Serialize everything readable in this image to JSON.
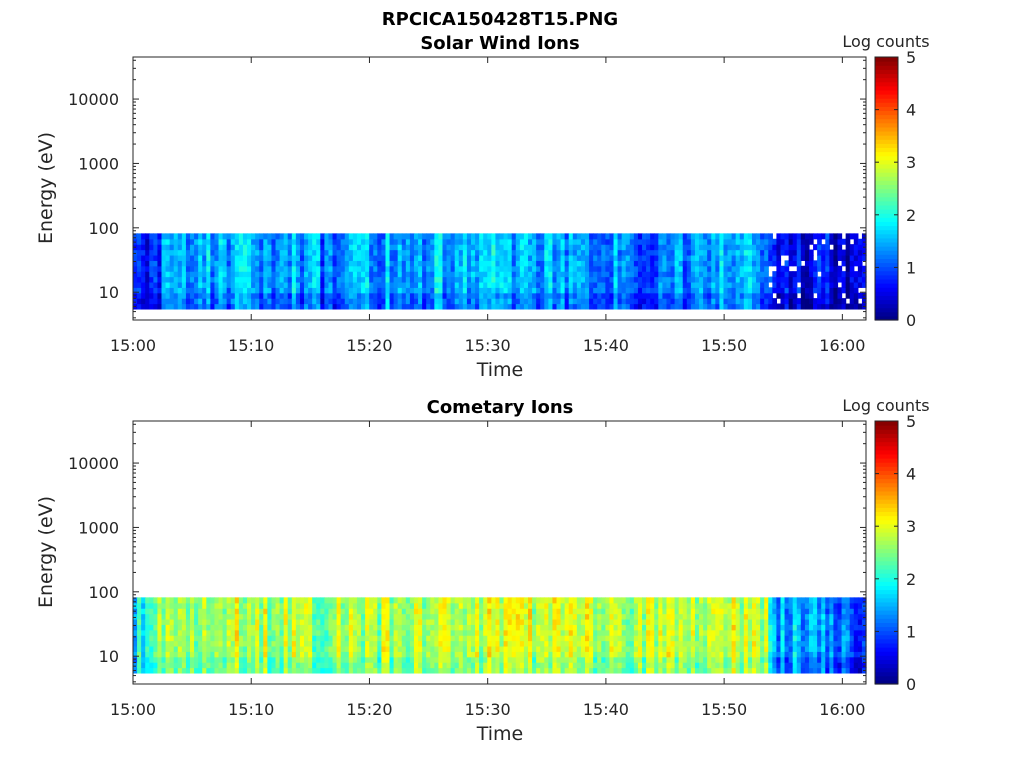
{
  "figure_title": "RPCICA150428T15.PNG",
  "chart_data": [
    {
      "type": "heatmap",
      "title": "Solar Wind Ions",
      "xlabel": "Time",
      "ylabel": "Energy (eV)",
      "x_range": [
        "15:00",
        "16:02"
      ],
      "x_ticks": [
        "15:00",
        "15:10",
        "15:20",
        "15:30",
        "15:40",
        "15:50",
        "16:00"
      ],
      "y_scale": "log",
      "y_range": [
        3.7,
        45000
      ],
      "y_ticks": [
        10,
        100,
        1000,
        10000
      ],
      "y_tick_labels": [
        "10",
        "100",
        "1000",
        "10000"
      ],
      "data_energy_range": [
        5.5,
        82
      ],
      "colorbar": {
        "label": "Log counts",
        "range": [
          0,
          5
        ],
        "ticks": [
          "0",
          "1",
          "2",
          "3",
          "4",
          "5"
        ],
        "colormap": "jet"
      },
      "time_profile": [
        {
          "t": 0.0,
          "v": 0.7
        },
        {
          "t": 1.5,
          "v": 0.9
        },
        {
          "t": 3.0,
          "v": 1.3
        },
        {
          "t": 5.0,
          "v": 1.1
        },
        {
          "t": 7.0,
          "v": 1.6
        },
        {
          "t": 10.0,
          "v": 1.4
        },
        {
          "t": 13.0,
          "v": 1.5
        },
        {
          "t": 16.0,
          "v": 1.2
        },
        {
          "t": 20.0,
          "v": 1.4
        },
        {
          "t": 24.0,
          "v": 1.5
        },
        {
          "t": 28.0,
          "v": 1.7
        },
        {
          "t": 32.0,
          "v": 1.6
        },
        {
          "t": 36.0,
          "v": 1.5
        },
        {
          "t": 40.0,
          "v": 1.3
        },
        {
          "t": 44.0,
          "v": 1.2
        },
        {
          "t": 47.0,
          "v": 1.4
        },
        {
          "t": 50.0,
          "v": 1.5
        },
        {
          "t": 53.5,
          "v": 1.4
        },
        {
          "t": 54.0,
          "v": 0.6
        },
        {
          "t": 58.0,
          "v": 0.5
        },
        {
          "t": 62.0,
          "v": 0.4
        }
      ]
    },
    {
      "type": "heatmap",
      "title": "Cometary Ions",
      "xlabel": "Time",
      "ylabel": "Energy (eV)",
      "x_range": [
        "15:00",
        "16:02"
      ],
      "x_ticks": [
        "15:00",
        "15:10",
        "15:20",
        "15:30",
        "15:40",
        "15:50",
        "16:00"
      ],
      "y_scale": "log",
      "y_range": [
        3.7,
        45000
      ],
      "y_ticks": [
        10,
        100,
        1000,
        10000
      ],
      "y_tick_labels": [
        "10",
        "100",
        "1000",
        "10000"
      ],
      "data_energy_range": [
        5.5,
        82
      ],
      "colorbar": {
        "label": "Log counts",
        "range": [
          0,
          5
        ],
        "ticks": [
          "0",
          "1",
          "2",
          "3",
          "4",
          "5"
        ],
        "colormap": "jet"
      },
      "time_profile": [
        {
          "t": 0.0,
          "v": 1.9
        },
        {
          "t": 1.5,
          "v": 2.4
        },
        {
          "t": 3.0,
          "v": 2.9
        },
        {
          "t": 5.0,
          "v": 2.6
        },
        {
          "t": 8.0,
          "v": 2.9
        },
        {
          "t": 12.0,
          "v": 2.7
        },
        {
          "t": 16.0,
          "v": 2.6
        },
        {
          "t": 20.0,
          "v": 2.7
        },
        {
          "t": 24.0,
          "v": 2.8
        },
        {
          "t": 28.0,
          "v": 2.9
        },
        {
          "t": 32.0,
          "v": 2.8
        },
        {
          "t": 36.0,
          "v": 3.0
        },
        {
          "t": 40.0,
          "v": 2.7
        },
        {
          "t": 44.0,
          "v": 2.7
        },
        {
          "t": 48.0,
          "v": 2.9
        },
        {
          "t": 53.5,
          "v": 2.8
        },
        {
          "t": 54.0,
          "v": 1.3
        },
        {
          "t": 57.0,
          "v": 1.6
        },
        {
          "t": 60.0,
          "v": 1.2
        },
        {
          "t": 62.0,
          "v": 1.0
        }
      ]
    }
  ]
}
